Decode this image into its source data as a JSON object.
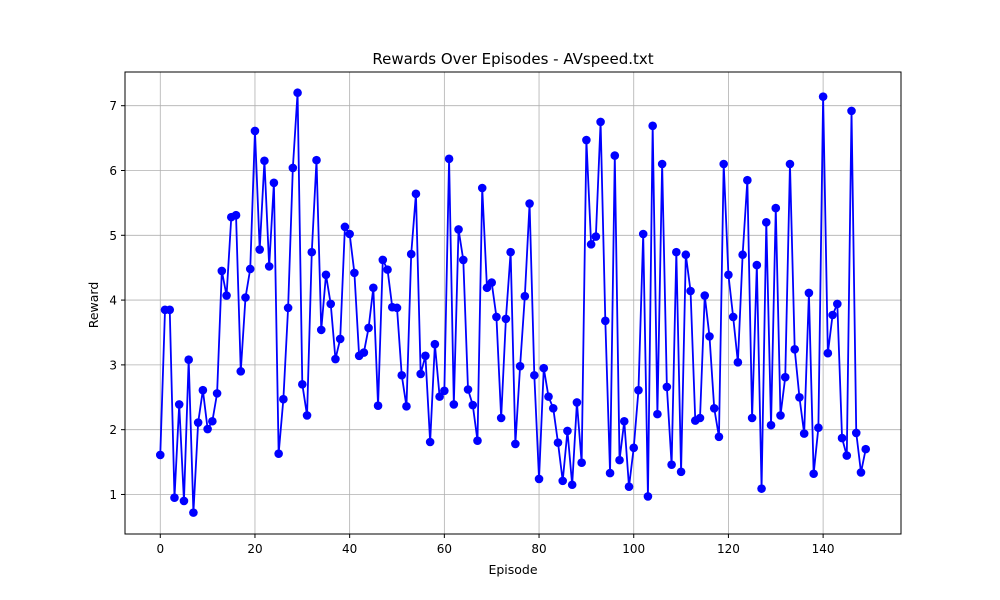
{
  "chart_data": {
    "type": "line",
    "title": "Rewards Over Episodes - AVspeed.txt",
    "xlabel": "Episode",
    "ylabel": "Reward",
    "xlim": [
      -7.45,
      156.45
    ],
    "ylim": [
      0.39,
      7.52
    ],
    "xticks": [
      0,
      20,
      40,
      60,
      80,
      100,
      120,
      140
    ],
    "yticks": [
      1,
      2,
      3,
      4,
      5,
      6,
      7
    ],
    "grid": true,
    "series": [
      {
        "color": "#0000ff",
        "marker": "circle",
        "x": [
          0,
          1,
          2,
          3,
          4,
          5,
          6,
          7,
          8,
          9,
          10,
          11,
          12,
          13,
          14,
          15,
          16,
          17,
          18,
          19,
          20,
          21,
          22,
          23,
          24,
          25,
          26,
          27,
          28,
          29,
          30,
          31,
          32,
          33,
          34,
          35,
          36,
          37,
          38,
          39,
          40,
          41,
          42,
          43,
          44,
          45,
          46,
          47,
          48,
          49,
          50,
          51,
          52,
          53,
          54,
          55,
          56,
          57,
          58,
          59,
          60,
          61,
          62,
          63,
          64,
          65,
          66,
          67,
          68,
          69,
          70,
          71,
          72,
          73,
          74,
          75,
          76,
          77,
          78,
          79,
          80,
          81,
          82,
          83,
          84,
          85,
          86,
          87,
          88,
          89,
          90,
          91,
          92,
          93,
          94,
          95,
          96,
          97,
          98,
          99,
          100,
          101,
          102,
          103,
          104,
          105,
          106,
          107,
          108,
          109,
          110,
          111,
          112,
          113,
          114,
          115,
          116,
          117,
          118,
          119,
          120,
          121,
          122,
          123,
          124,
          125,
          126,
          127,
          128,
          129,
          130,
          131,
          132,
          133,
          134,
          135,
          136,
          137,
          138,
          139,
          140,
          141,
          142,
          143,
          144,
          145,
          146,
          147,
          148,
          149
        ],
        "y": [
          1.61,
          3.85,
          3.85,
          0.95,
          2.39,
          0.9,
          3.08,
          0.72,
          2.11,
          2.61,
          2.01,
          2.13,
          2.56,
          4.45,
          4.07,
          5.28,
          5.31,
          2.9,
          4.04,
          4.48,
          6.61,
          4.78,
          6.15,
          4.52,
          5.81,
          1.63,
          2.47,
          3.88,
          6.04,
          7.2,
          2.7,
          2.22,
          4.74,
          6.16,
          3.54,
          4.39,
          3.94,
          3.09,
          3.4,
          5.13,
          5.02,
          4.42,
          3.14,
          3.19,
          3.57,
          4.19,
          2.37,
          4.62,
          4.47,
          3.89,
          3.88,
          2.84,
          2.36,
          4.71,
          5.64,
          2.86,
          3.14,
          1.81,
          3.32,
          2.51,
          2.6,
          6.18,
          2.39,
          5.09,
          4.62,
          2.62,
          2.38,
          1.83,
          5.73,
          4.19,
          4.27,
          3.74,
          2.18,
          3.71,
          4.74,
          1.78,
          2.98,
          4.06,
          5.49,
          2.84,
          1.24,
          2.95,
          2.51,
          2.33,
          1.8,
          1.21,
          1.98,
          1.15,
          2.42,
          1.49,
          6.47,
          4.86,
          4.98,
          6.75,
          3.68,
          1.33,
          6.23,
          1.53,
          2.13,
          1.12,
          1.72,
          2.61,
          5.02,
          0.97,
          6.69,
          2.24,
          6.1,
          2.66,
          1.46,
          4.74,
          1.35,
          4.7,
          4.14,
          2.14,
          2.18,
          4.07,
          3.44,
          2.33,
          1.89,
          6.1,
          4.39,
          3.74,
          3.04,
          4.7,
          5.85,
          2.18,
          4.54,
          1.09,
          5.2,
          2.07,
          5.42,
          2.22,
          2.81,
          6.1,
          3.24,
          2.5,
          1.94,
          4.11,
          1.32,
          2.03,
          7.14,
          3.18,
          3.77,
          3.94,
          1.87,
          1.6,
          6.92,
          1.95,
          1.34,
          1.7
        ]
      }
    ]
  }
}
